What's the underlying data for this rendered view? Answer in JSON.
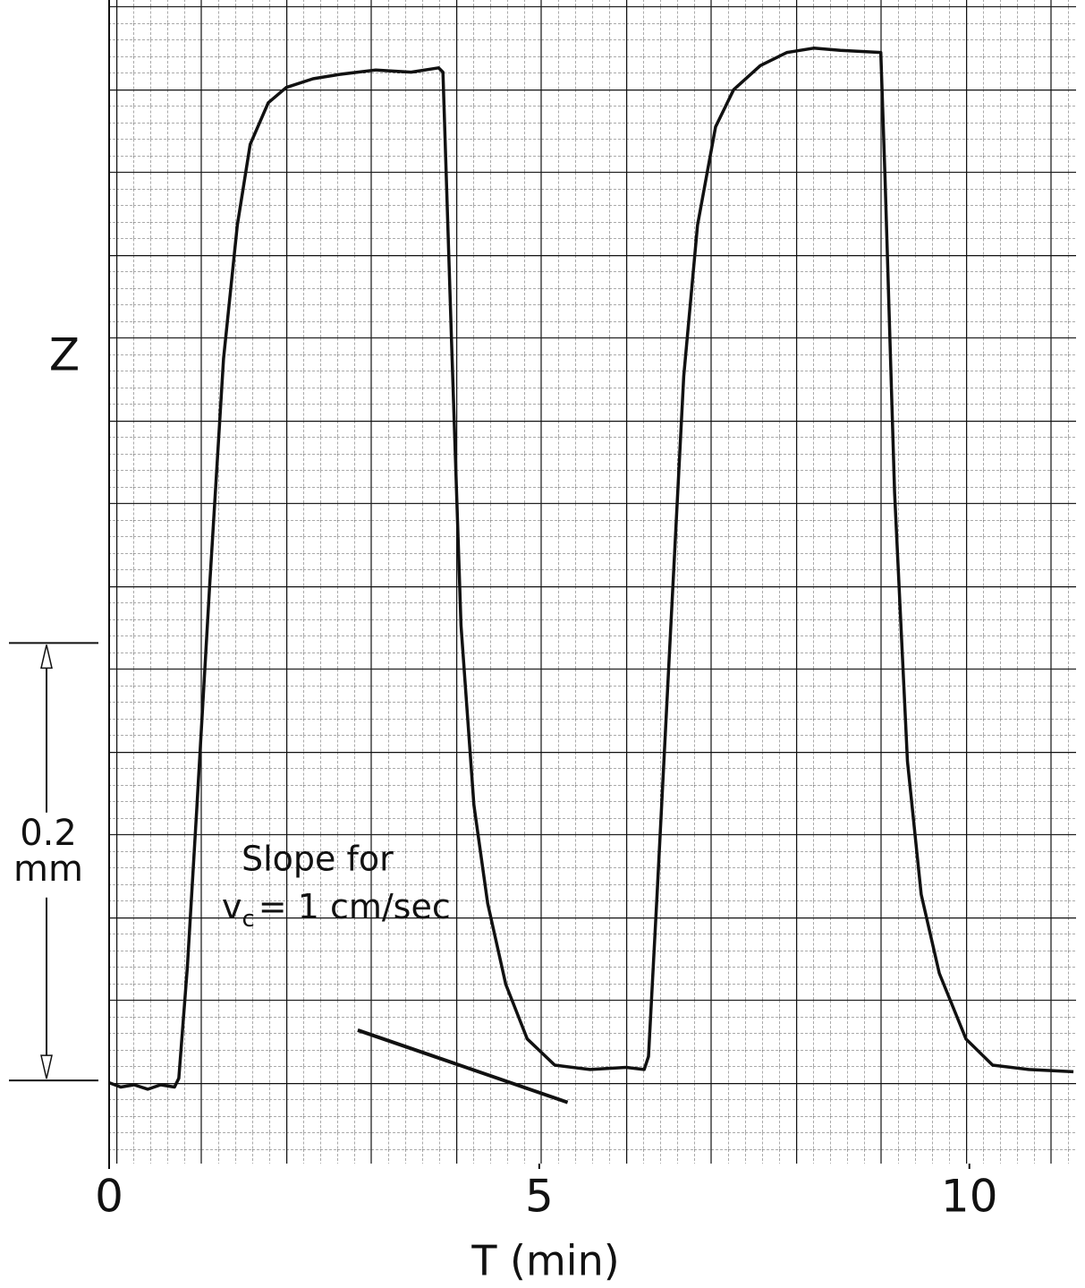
{
  "chart_data": {
    "type": "line",
    "y_label": "Z",
    "x_label": "T (min)",
    "xlim": [
      0,
      11.24
    ],
    "ylim": [
      -0.038,
      0.494
    ],
    "xticks": [
      0,
      5,
      10
    ],
    "series": [
      {
        "color": "#111111",
        "x": [
          0,
          0.135,
          0.29,
          0.45,
          0.6,
          0.76,
          0.81,
          0.91,
          1.02,
          1.17,
          1.33,
          1.49,
          1.64,
          1.85,
          2.06,
          2.37,
          2.68,
          3.1,
          3.51,
          3.83,
          3.88,
          3.98,
          4.09,
          4.24,
          4.4,
          4.61,
          4.86,
          5.18,
          5.59,
          6.01,
          6.22,
          6.27,
          6.37,
          6.53,
          6.68,
          6.84,
          7.05,
          7.26,
          7.57,
          7.88,
          8.19,
          8.5,
          8.97,
          9.02,
          9.13,
          9.28,
          9.44,
          9.65,
          9.96,
          10.27,
          10.69,
          11.21
        ],
        "values": [
          -0.001,
          -0.003,
          -0.002,
          -0.004,
          -0.002,
          -0.003,
          0.001,
          0.052,
          0.125,
          0.227,
          0.33,
          0.391,
          0.428,
          0.447,
          0.454,
          0.458,
          0.46,
          0.462,
          0.461,
          0.463,
          0.461,
          0.338,
          0.208,
          0.126,
          0.081,
          0.044,
          0.019,
          0.007,
          0.005,
          0.006,
          0.005,
          0.011,
          0.085,
          0.208,
          0.322,
          0.391,
          0.436,
          0.453,
          0.464,
          0.47,
          0.472,
          0.471,
          0.47,
          0.412,
          0.269,
          0.146,
          0.085,
          0.049,
          0.019,
          0.007,
          0.005,
          0.004
        ]
      }
    ],
    "scale_bar": {
      "value": 0.2,
      "unit": "mm"
    },
    "slope_line": {
      "x": [
        2.89,
        5.33
      ],
      "y": [
        0.023,
        -0.01
      ]
    },
    "annotation": {
      "line1": "Slope for",
      "symbol": "v",
      "subscript": "c",
      "rest": "= 1 cm/sec"
    }
  }
}
